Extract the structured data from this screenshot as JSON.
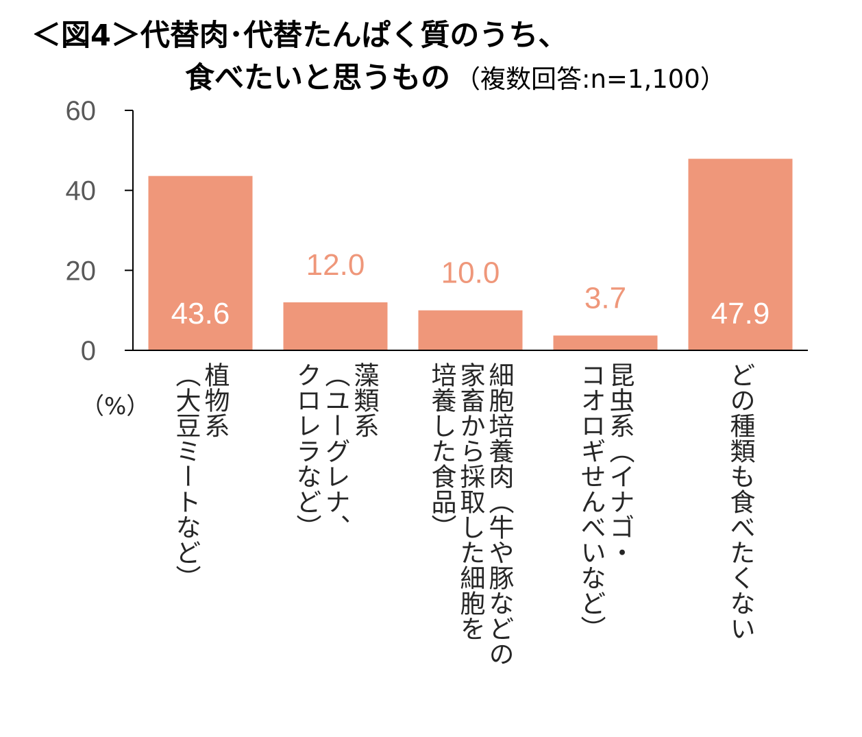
{
  "title": {
    "line1": "＜図4＞代替肉･代替たんぱく質のうち、",
    "line2": "食べたいと思うもの",
    "subtitle": "（複数回答:n=1,100）"
  },
  "chart_data": {
    "type": "bar",
    "title": "＜図4＞代替肉･代替たんぱく質のうち、食べたいと思うもの（複数回答:n=1,100）",
    "unit_label": "（%）",
    "ylim": [
      0,
      60
    ],
    "y_ticks": [
      "0",
      "20",
      "40",
      "60"
    ],
    "categories": [
      {
        "lines": [
          "植",
          "物",
          "系"
        ],
        "columns": [
          "植物系",
          "（大豆ミートなど）"
        ]
      },
      {
        "columns": [
          "藻類系",
          "（ユーグレナ、",
          "クロレラなど）"
        ]
      },
      {
        "columns": [
          "細胞培養肉（牛や豚などの",
          "家畜から採取した細胞を",
          "培養した食品）"
        ]
      },
      {
        "columns": [
          "昆虫系（イナゴ・",
          "コオロギせんべいなど）"
        ]
      },
      {
        "columns": [
          "どの種類も食べたくない"
        ]
      }
    ],
    "values": [
      43.6,
      12.0,
      10.0,
      3.7,
      47.9
    ],
    "value_labels": [
      "43.6",
      "12.0",
      "10.0",
      "3.7",
      "47.9"
    ],
    "bar_color": "#ef977a",
    "label_inside_color": "#ffffff",
    "label_outside_color": "#ef977a",
    "axis_color": "#000000",
    "grid": false,
    "legend": "none"
  }
}
